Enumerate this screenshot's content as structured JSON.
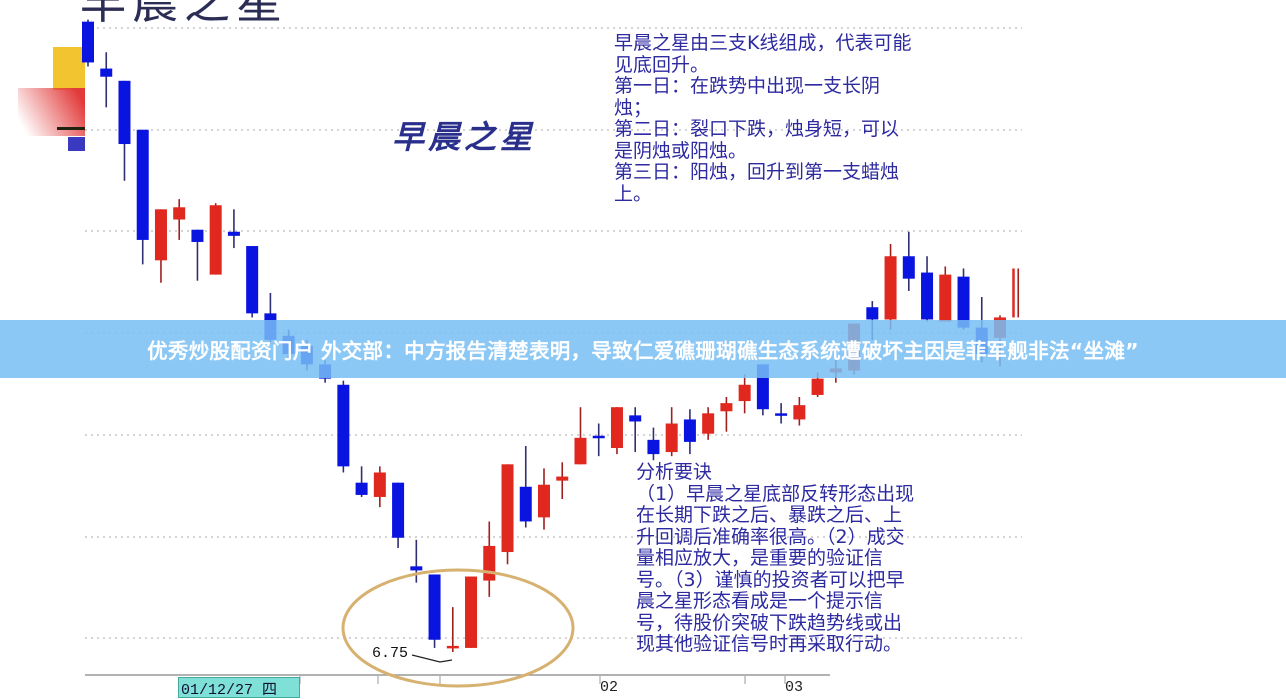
{
  "header": {
    "title": "早晨之星"
  },
  "chart_data": {
    "type": "candlestick",
    "title": "早晨之星",
    "up_color": "#e0281e",
    "down_color": "#0a14e0",
    "grid": "dotted horizontal",
    "x_tick_labels": [
      "01/12/27 四",
      "02",
      "03"
    ],
    "annotations": [
      {
        "label": "6.75",
        "target": "lowest low"
      }
    ],
    "highlight": "ellipse around morning star pattern",
    "candles": [
      {
        "o": 9.84,
        "h": 9.85,
        "l": 9.62,
        "c": 9.64
      },
      {
        "o": 9.61,
        "h": 9.69,
        "l": 9.42,
        "c": 9.57
      },
      {
        "o": 9.55,
        "h": 9.55,
        "l": 9.06,
        "c": 9.24
      },
      {
        "o": 9.31,
        "h": 9.31,
        "l": 8.65,
        "c": 8.77
      },
      {
        "o": 8.67,
        "h": 8.92,
        "l": 8.56,
        "c": 8.92
      },
      {
        "o": 8.87,
        "h": 8.97,
        "l": 8.77,
        "c": 8.93
      },
      {
        "o": 8.82,
        "h": 8.82,
        "l": 8.57,
        "c": 8.76
      },
      {
        "o": 8.6,
        "h": 8.95,
        "l": 8.6,
        "c": 8.94
      },
      {
        "o": 8.81,
        "h": 8.92,
        "l": 8.73,
        "c": 8.79
      },
      {
        "o": 8.74,
        "h": 8.74,
        "l": 8.39,
        "c": 8.41
      },
      {
        "o": 8.41,
        "h": 8.51,
        "l": 8.26,
        "c": 8.28
      },
      {
        "o": 8.3,
        "h": 8.33,
        "l": 8.18,
        "c": 8.21
      },
      {
        "o": 8.25,
        "h": 8.28,
        "l": 8.13,
        "c": 8.16
      },
      {
        "o": 8.16,
        "h": 8.18,
        "l": 8.07,
        "c": 8.09
      },
      {
        "o": 8.06,
        "h": 8.08,
        "l": 7.63,
        "c": 7.66
      },
      {
        "o": 7.58,
        "h": 7.66,
        "l": 7.51,
        "c": 7.52
      },
      {
        "o": 7.51,
        "h": 7.66,
        "l": 7.46,
        "c": 7.63
      },
      {
        "o": 7.58,
        "h": 7.58,
        "l": 7.26,
        "c": 7.31
      },
      {
        "o": 7.17,
        "h": 7.3,
        "l": 7.09,
        "c": 7.15
      },
      {
        "o": 7.13,
        "h": 7.13,
        "l": 6.77,
        "c": 6.81
      },
      {
        "o": 6.77,
        "h": 6.97,
        "l": 6.75,
        "c": 6.78
      },
      {
        "o": 6.77,
        "h": 7.12,
        "l": 6.77,
        "c": 7.12
      },
      {
        "o": 7.1,
        "h": 7.39,
        "l": 7.02,
        "c": 7.27
      },
      {
        "o": 7.24,
        "h": 7.67,
        "l": 7.18,
        "c": 7.67
      },
      {
        "o": 7.56,
        "h": 7.76,
        "l": 7.36,
        "c": 7.39
      },
      {
        "o": 7.41,
        "h": 7.65,
        "l": 7.35,
        "c": 7.57
      },
      {
        "o": 7.59,
        "h": 7.68,
        "l": 7.5,
        "c": 7.61
      },
      {
        "o": 7.67,
        "h": 7.95,
        "l": 7.67,
        "c": 7.8
      },
      {
        "o": 7.81,
        "h": 7.87,
        "l": 7.71,
        "c": 7.8
      },
      {
        "o": 7.75,
        "h": 7.95,
        "l": 7.72,
        "c": 7.95
      },
      {
        "o": 7.91,
        "h": 7.95,
        "l": 7.73,
        "c": 7.88
      },
      {
        "o": 7.79,
        "h": 7.85,
        "l": 7.69,
        "c": 7.72
      },
      {
        "o": 7.73,
        "h": 7.95,
        "l": 7.71,
        "c": 7.87
      },
      {
        "o": 7.89,
        "h": 7.94,
        "l": 7.72,
        "c": 7.78
      },
      {
        "o": 7.82,
        "h": 7.95,
        "l": 7.79,
        "c": 7.92
      },
      {
        "o": 7.93,
        "h": 8.0,
        "l": 7.83,
        "c": 7.97
      },
      {
        "o": 7.98,
        "h": 8.11,
        "l": 7.92,
        "c": 8.06
      },
      {
        "o": 8.16,
        "h": 8.16,
        "l": 7.91,
        "c": 7.94
      },
      {
        "o": 7.92,
        "h": 7.97,
        "l": 7.87,
        "c": 7.91
      },
      {
        "o": 7.89,
        "h": 8.0,
        "l": 7.86,
        "c": 7.96
      },
      {
        "o": 8.01,
        "h": 8.12,
        "l": 8.0,
        "c": 8.09
      },
      {
        "o": 8.12,
        "h": 8.18,
        "l": 8.07,
        "c": 8.14
      },
      {
        "o": 8.13,
        "h": 8.36,
        "l": 8.11,
        "c": 8.36
      },
      {
        "o": 8.44,
        "h": 8.47,
        "l": 8.28,
        "c": 8.38
      },
      {
        "o": 8.38,
        "h": 8.75,
        "l": 8.33,
        "c": 8.69
      },
      {
        "o": 8.69,
        "h": 8.81,
        "l": 8.52,
        "c": 8.58
      },
      {
        "o": 8.61,
        "h": 8.69,
        "l": 8.37,
        "c": 8.38
      },
      {
        "o": 8.37,
        "h": 8.64,
        "l": 8.37,
        "c": 8.6
      },
      {
        "o": 8.59,
        "h": 8.63,
        "l": 8.33,
        "c": 8.34
      },
      {
        "o": 8.34,
        "h": 8.49,
        "l": 8.17,
        "c": 8.21
      },
      {
        "o": 8.29,
        "h": 8.4,
        "l": 8.15,
        "c": 8.39
      },
      {
        "o": 8.39,
        "h": 8.63,
        "l": 8.39,
        "c": 8.63
      }
    ]
  },
  "description_top": {
    "lines": [
      "早晨之星由三支K线组成，代表可能",
      "见底回升。",
      "第一日：在跌势中出现一支长阴",
      "烛；",
      "第二日：裂口下跌，烛身短，可以",
      "是阴烛或阳烛。",
      "第三日：阳烛，回升到第一支蜡烛",
      "上。"
    ]
  },
  "description_bottom": {
    "lines": [
      "分析要诀",
      "（1）早晨之星底部反转形态出现",
      "在长期下跌之后、暴跌之后、上",
      "升回调后准确率很高。（2）成交",
      "量相应放大，是重要的验证信",
      "号。（3）谨慎的投资者可以把早",
      "晨之星形态看成是一个提示信",
      "号，待股价突破下跌趋势线或出",
      "现其他验证信号时再采取行动。"
    ]
  },
  "banner": {
    "text": "优秀炒股配资门户 外交部：中方报告清楚表明，导致仁爱礁珊瑚礁生态系统遭破坏主因是菲军舰非法“坐滩”"
  }
}
